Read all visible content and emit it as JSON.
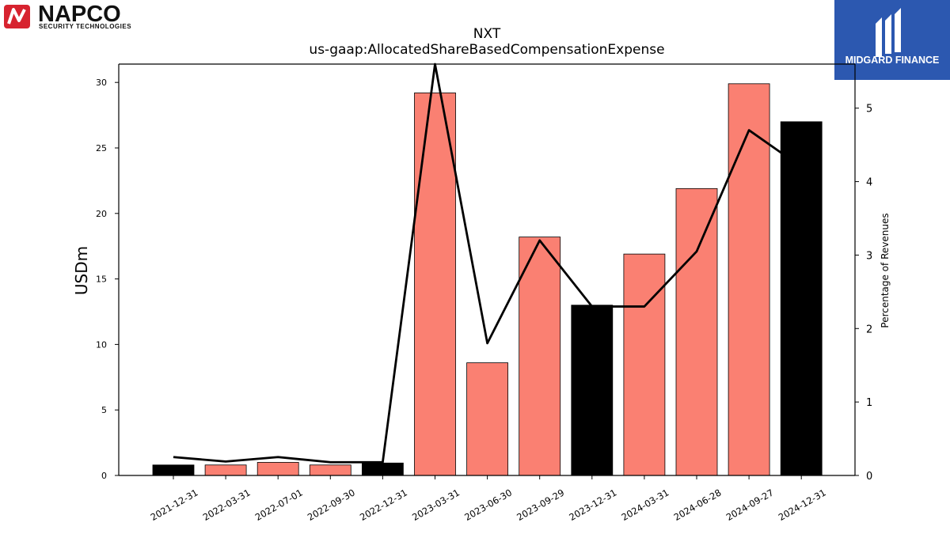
{
  "header": {
    "left_logo": {
      "name": "NAPCO",
      "tagline": "SECURITY TECHNOLOGIES",
      "accent": "#d7232f"
    },
    "right_logo": {
      "name": "MIDGARD FINANCE",
      "background": "#2c58b0"
    }
  },
  "chart_data": {
    "type": "bar",
    "title": "NXT",
    "subtitle": "us-gaap:AllocatedShareBasedCompensationExpense",
    "ylabel": "USDm",
    "y2label": "Percentage of Revenues",
    "ylim": [
      0,
      31.4
    ],
    "y2lim": [
      0,
      5.6
    ],
    "yticks": [
      0,
      5,
      10,
      15,
      20,
      25,
      30
    ],
    "y2ticks": [
      0,
      1,
      2,
      3,
      4,
      5
    ],
    "categories": [
      "2021-12-31",
      "2022-03-31",
      "2022-07-01",
      "2022-09-30",
      "2022-12-31",
      "2023-03-31",
      "2023-06-30",
      "2023-09-29",
      "2023-12-31",
      "2024-03-31",
      "2024-06-28",
      "2024-09-27",
      "2024-12-31"
    ],
    "series": [
      {
        "type": "bar",
        "values": [
          0.8,
          0.8,
          1.0,
          0.8,
          0.95,
          29.2,
          8.6,
          18.2,
          13.0,
          16.9,
          21.9,
          29.9,
          27.0
        ],
        "colors": [
          "#000000",
          "#fa8072",
          "#fa8072",
          "#fa8072",
          "#000000",
          "#fa8072",
          "#fa8072",
          "#fa8072",
          "#000000",
          "#fa8072",
          "#fa8072",
          "#fa8072",
          "#000000"
        ]
      },
      {
        "type": "line",
        "axis": "right",
        "values": [
          0.25,
          0.19,
          0.25,
          0.18,
          0.18,
          5.6,
          1.8,
          3.2,
          2.3,
          2.3,
          3.05,
          4.7,
          4.2
        ],
        "color": "#000000"
      }
    ],
    "grid": false
  }
}
